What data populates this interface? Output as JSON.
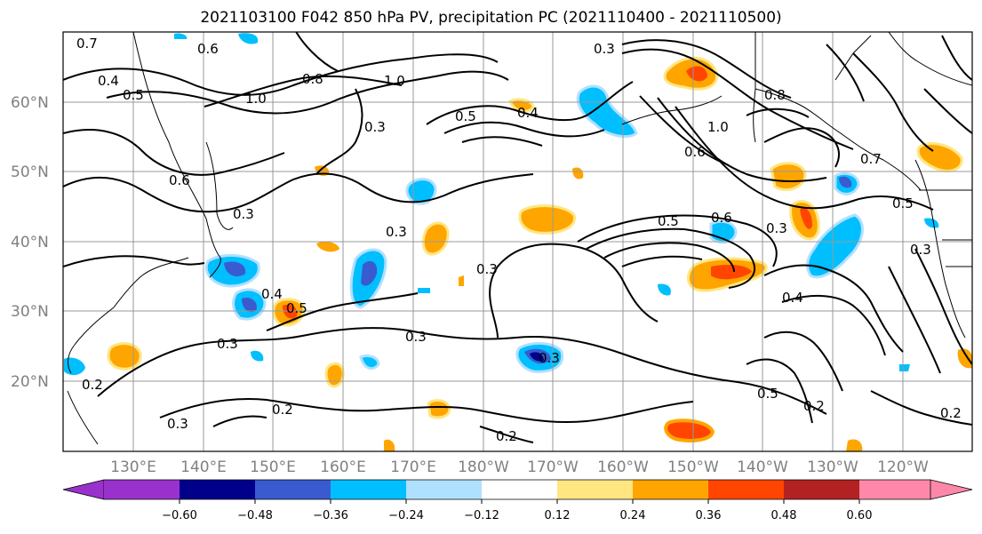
{
  "map": {
    "title": "2021103100 F042 850 hPa PV, precipitation PC (2021110400 - 2021110500)",
    "lat_labels": [
      "60°N",
      "50°N",
      "40°N",
      "30°N",
      "20°N"
    ],
    "lon_labels": [
      "130°E",
      "140°E",
      "150°E",
      "160°E",
      "170°E",
      "180°W",
      "170°W",
      "160°W",
      "150°W",
      "140°W",
      "130°W",
      "120°W"
    ],
    "colorbar": {
      "colors": [
        "#9932CC",
        "#00008B",
        "#3A5BCF",
        "#00BFFF",
        "#B0E0FF",
        "#FFFFFF",
        "#FFE680",
        "#FFA500",
        "#FF4500",
        "#B22222",
        "#FF88AA"
      ],
      "tick_labels": [
        "−0.60",
        "−0.48",
        "−0.36",
        "−0.24",
        "−0.12",
        "0.12",
        "0.24",
        "0.36",
        "0.48",
        "0.60"
      ]
    },
    "contour_labels": [
      "0.7",
      "0.6",
      "0.4",
      "0.5",
      "1.0",
      "0.8",
      "0.3",
      "0.5",
      "1.0",
      "0.6",
      "0.3",
      "0.5",
      "0.6",
      "0.3",
      "0.3",
      "0.3",
      "0.4",
      "0.5",
      "0.3",
      "0.3",
      "0.3",
      "0.2",
      "0.3",
      "0.2",
      "0.2",
      "0.5",
      "0.4",
      "0.2",
      "0.2",
      "0.7",
      "0.5",
      "0.3",
      "0.4",
      "0.6",
      "0.8",
      "0.3"
    ]
  }
}
